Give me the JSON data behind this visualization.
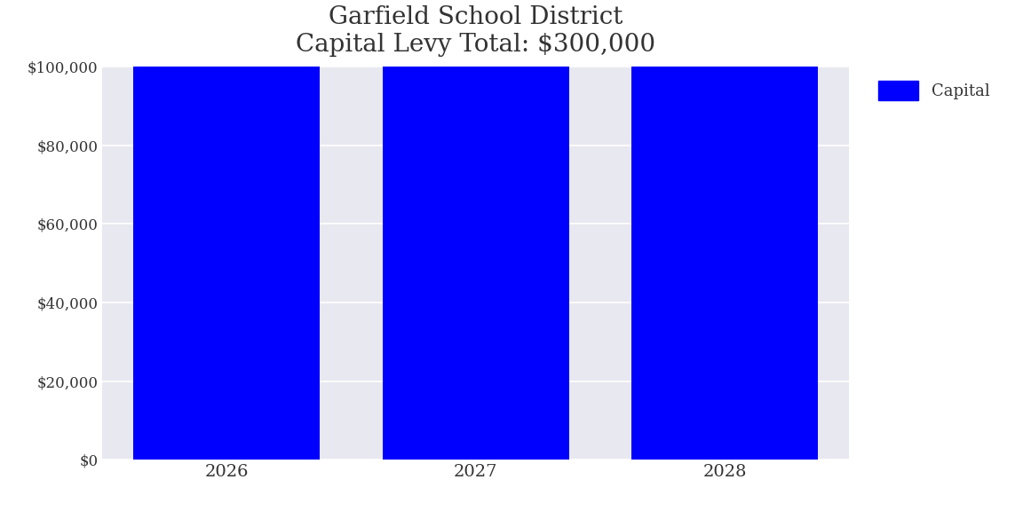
{
  "title_line1": "Garfield School District",
  "title_line2": "Capital Levy Total: $300,000",
  "categories": [
    "2026",
    "2027",
    "2028"
  ],
  "values": [
    100000,
    100000,
    100000
  ],
  "bar_color": "#0000ff",
  "ylim": [
    0,
    100000
  ],
  "yticks": [
    0,
    20000,
    40000,
    60000,
    80000,
    100000
  ],
  "ytick_labels": [
    "$0",
    "$20,000",
    "$40,000",
    "$60,000",
    "$80,000",
    "$100,000"
  ],
  "legend_label": "Capital",
  "figure_bg_color": "#ffffff",
  "plot_bg_color": "#e8e8f0",
  "title_fontsize": 20,
  "tick_fontsize": 12,
  "legend_fontsize": 13,
  "bar_width": 0.75
}
